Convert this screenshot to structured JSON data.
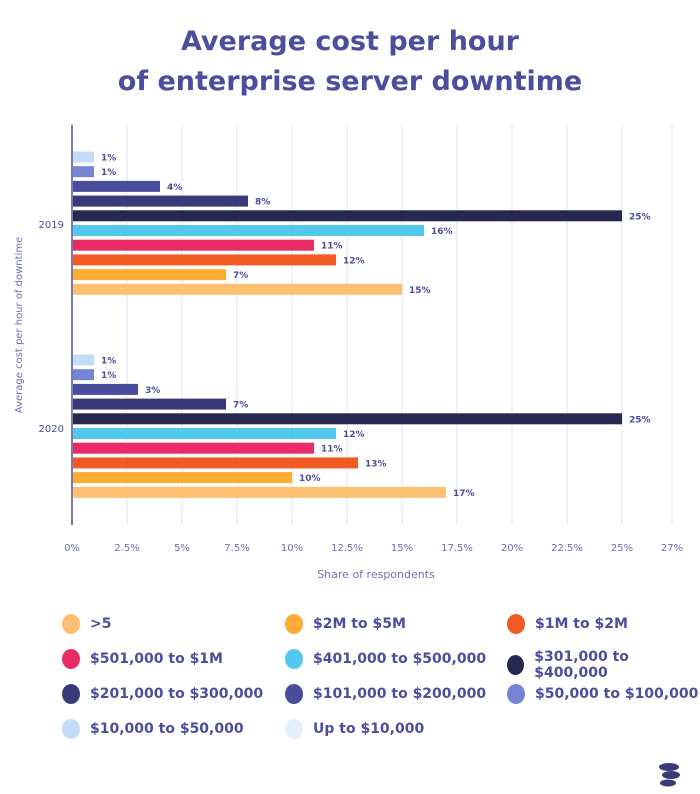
{
  "chart_data": {
    "type": "bar",
    "orientation": "horizontal",
    "title": "Average cost per hour of enterprise server downtime",
    "title_lines": [
      "Average cost per hour",
      "of enterprise server downtime"
    ],
    "xlabel": "Share of respondents",
    "ylabel": "Average cost per hour of downtime",
    "xlim": [
      0,
      27
    ],
    "xticks": [
      0,
      2.5,
      5,
      7.5,
      10,
      12.5,
      15,
      17.5,
      20,
      22.5,
      25,
      27
    ],
    "xtick_labels": [
      "0%",
      "2.5%",
      "5%",
      "7.5%",
      "10%",
      "12.5%",
      "15%",
      "17.5%",
      "20%",
      "22.5%",
      "25%",
      "27%"
    ],
    "grid": true,
    "categories": [
      "2019",
      "2020"
    ],
    "series": [
      {
        "name": "$10,000 to $50,000",
        "color": "#c5dcf9",
        "values": [
          1,
          1
        ]
      },
      {
        "name": "$50,000 to $100,000",
        "color": "#7684d4",
        "values": [
          1,
          1
        ]
      },
      {
        "name": "$101,000 to $200,000",
        "color": "#4a4d9d",
        "values": [
          4,
          3
        ]
      },
      {
        "name": "$201,000 to $300,000",
        "color": "#383b78",
        "values": [
          8,
          7
        ]
      },
      {
        "name": "$301,000 to $400,000",
        "color": "#262850",
        "values": [
          25,
          25
        ]
      },
      {
        "name": "$401,000 to $500,000",
        "color": "#53c8ef",
        "values": [
          16,
          12
        ]
      },
      {
        "name": "$501,000 to $1M",
        "color": "#e92c66",
        "values": [
          11,
          11
        ]
      },
      {
        "name": "$1M to $2M",
        "color": "#f25a24",
        "values": [
          12,
          13
        ]
      },
      {
        "name": "$2M to $5M",
        "color": "#fdab32",
        "values": [
          7,
          10
        ]
      },
      {
        "name": ">5",
        "color": "#fdbf72",
        "values": [
          15,
          17
        ]
      }
    ],
    "legend_position": "bottom",
    "legend": [
      {
        "label": ">5",
        "color": "#fdbf72"
      },
      {
        "label": "$2M to $5M",
        "color": "#fdab32"
      },
      {
        "label": "$1M to $2M",
        "color": "#f25a24"
      },
      {
        "label": "$501,000 to $1M",
        "color": "#e92c66"
      },
      {
        "label": "$401,000 to $500,000",
        "color": "#53c8ef"
      },
      {
        "label": "$301,000 to $400,000",
        "color": "#262850"
      },
      {
        "label": "$201,000 to $300,000",
        "color": "#383b78"
      },
      {
        "label": "$101,000 to $200,000",
        "color": "#4a4d9d"
      },
      {
        "label": "$50,000 to $100,000",
        "color": "#7684d4"
      },
      {
        "label": "$10,000 to $50,000",
        "color": "#c5dcf9"
      },
      {
        "label": "Up to $10,000",
        "color": "#e4effd"
      }
    ]
  }
}
